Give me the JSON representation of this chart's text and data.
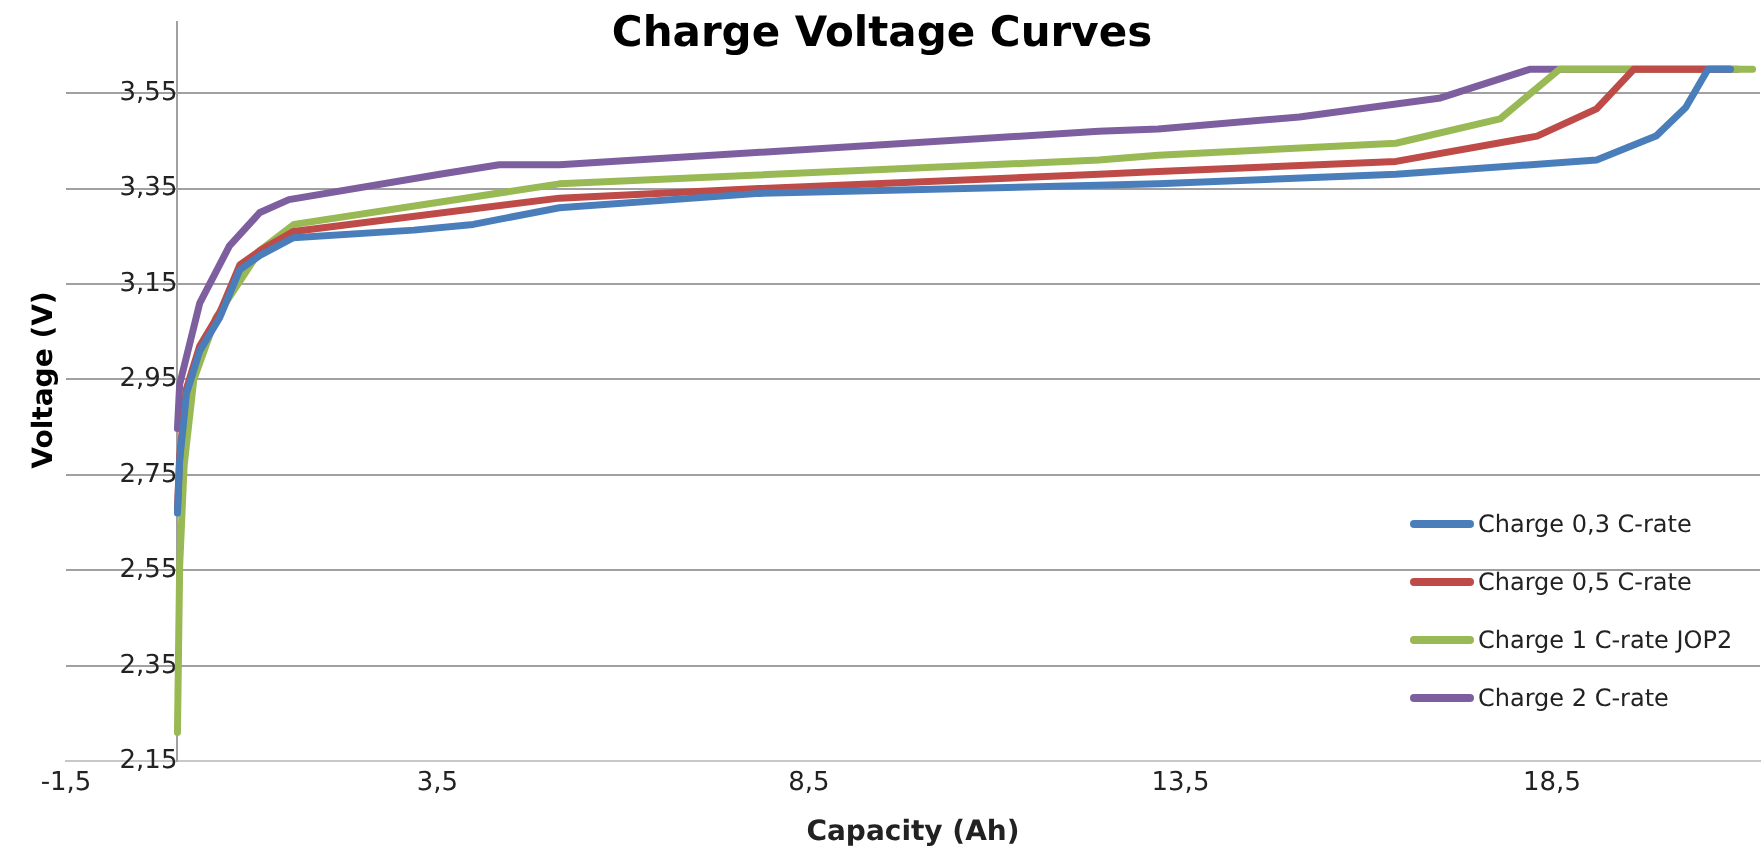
{
  "chart_data": {
    "type": "line",
    "title": "Charge Voltage Curves",
    "xlabel": "Capacity (Ah)",
    "ylabel": "Voltage (V)",
    "xlim": [
      -1.5,
      21.3
    ],
    "xticks": [
      {
        "value": -1.5,
        "label": "-1,5"
      },
      {
        "value": 3.5,
        "label": "3,5"
      },
      {
        "value": 8.5,
        "label": "8,5"
      },
      {
        "value": 13.5,
        "label": "13,5"
      },
      {
        "value": 18.5,
        "label": "18,5"
      }
    ],
    "ylim": [
      2.15,
      3.7
    ],
    "yticks": [
      {
        "value": 2.15,
        "label": "2,15"
      },
      {
        "value": 2.35,
        "label": "2,35"
      },
      {
        "value": 2.55,
        "label": "2,55"
      },
      {
        "value": 2.75,
        "label": "2,75"
      },
      {
        "value": 2.95,
        "label": "2,95"
      },
      {
        "value": 3.15,
        "label": "3,15"
      },
      {
        "value": 3.35,
        "label": "3,35"
      },
      {
        "value": 3.55,
        "label": "3,55"
      }
    ],
    "grid": "y",
    "legend": "right",
    "marker": "none",
    "line_style": "solid",
    "series": [
      {
        "name": "Charge 0,3 C-rate",
        "color": "#4a7ebb",
        "x": [
          0,
          0.03,
          0.12,
          0.3,
          0.57,
          0.84,
          1.11,
          1.56,
          3.18,
          3.98,
          5.14,
          7.83,
          12.4,
          13.2,
          16.4,
          19.1,
          19.9,
          20.3,
          20.6,
          20.9
        ],
        "values": [
          2.67,
          2.78,
          2.92,
          3.01,
          3.08,
          3.18,
          3.21,
          3.247,
          3.263,
          3.275,
          3.31,
          3.34,
          3.357,
          3.36,
          3.38,
          3.41,
          3.46,
          3.52,
          3.6,
          3.6
        ]
      },
      {
        "name": "Charge 0,5 C-rate",
        "color": "#be4b48",
        "x": [
          0,
          0.03,
          0.12,
          0.3,
          0.57,
          0.84,
          1.11,
          1.56,
          5.14,
          7.83,
          12.4,
          13.2,
          16.4,
          18.3,
          19.1,
          19.6,
          20.9
        ],
        "values": [
          2.68,
          2.79,
          2.93,
          3.02,
          3.09,
          3.19,
          3.22,
          3.26,
          3.33,
          3.35,
          3.38,
          3.386,
          3.407,
          3.46,
          3.517,
          3.6,
          3.6
        ]
      },
      {
        "name": "Charge 1 C-rate JOP2",
        "color": "#98b954",
        "x": [
          0,
          0.03,
          0.09,
          0.22,
          0.52,
          1.11,
          1.57,
          5.14,
          12.4,
          13.2,
          16.4,
          17.8,
          18.6,
          21.2
        ],
        "values": [
          2.21,
          2.56,
          2.77,
          2.95,
          3.08,
          3.22,
          3.275,
          3.36,
          3.41,
          3.42,
          3.445,
          3.496,
          3.6,
          3.6
        ]
      },
      {
        "name": "Charge 2 C-rate",
        "color": "#7d5fa0",
        "x": [
          0,
          0.03,
          0.3,
          0.7,
          1.11,
          1.5,
          3.53,
          4.33,
          5.14,
          12.4,
          13.2,
          15.1,
          17.0,
          18.2,
          21.0
        ],
        "values": [
          2.847,
          2.94,
          3.11,
          3.23,
          3.3,
          3.327,
          3.38,
          3.4,
          3.4,
          3.47,
          3.475,
          3.5,
          3.54,
          3.6,
          3.6
        ]
      }
    ]
  }
}
